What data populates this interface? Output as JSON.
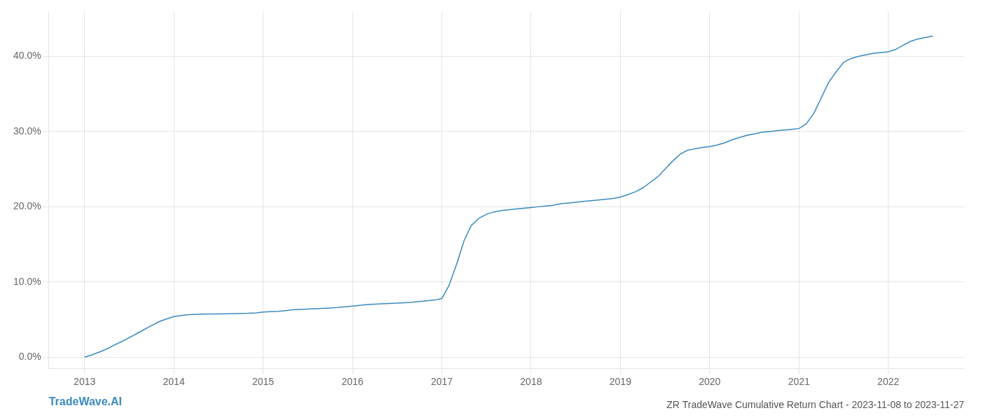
{
  "chart_data": {
    "type": "line",
    "title": "ZR TradeWave Cumulative Return Chart - 2023-11-08 to 2023-11-27",
    "annotations": [
      "TradeWave.AI"
    ],
    "x": [
      2013.0,
      2013.08,
      2013.17,
      2013.25,
      2013.33,
      2013.42,
      2013.5,
      2013.58,
      2013.67,
      2013.75,
      2013.83,
      2013.92,
      2014.0,
      2014.08,
      2014.17,
      2014.25,
      2014.33,
      2014.42,
      2014.5,
      2014.58,
      2014.67,
      2014.75,
      2014.83,
      2014.92,
      2015.0,
      2015.08,
      2015.17,
      2015.25,
      2015.33,
      2015.42,
      2015.5,
      2015.58,
      2015.67,
      2015.75,
      2015.83,
      2015.92,
      2016.0,
      2016.08,
      2016.17,
      2016.25,
      2016.33,
      2016.42,
      2016.5,
      2016.58,
      2016.67,
      2016.75,
      2016.83,
      2016.92,
      2017.0,
      2017.08,
      2017.17,
      2017.25,
      2017.33,
      2017.42,
      2017.5,
      2017.58,
      2017.67,
      2017.75,
      2017.83,
      2017.92,
      2018.0,
      2018.08,
      2018.17,
      2018.25,
      2018.33,
      2018.42,
      2018.5,
      2018.58,
      2018.67,
      2018.75,
      2018.83,
      2018.92,
      2019.0,
      2019.08,
      2019.17,
      2019.25,
      2019.33,
      2019.42,
      2019.5,
      2019.58,
      2019.67,
      2019.75,
      2019.83,
      2019.92,
      2020.0,
      2020.08,
      2020.17,
      2020.25,
      2020.33,
      2020.42,
      2020.5,
      2020.58,
      2020.67,
      2020.75,
      2020.83,
      2020.92,
      2021.0,
      2021.08,
      2021.17,
      2021.25,
      2021.33,
      2021.42,
      2021.5,
      2021.58,
      2021.67,
      2021.75,
      2021.83,
      2021.92,
      2022.0,
      2022.08,
      2022.17,
      2022.25,
      2022.33,
      2022.42,
      2022.5
    ],
    "values": [
      0.0,
      0.3,
      0.7,
      1.1,
      1.6,
      2.1,
      2.6,
      3.1,
      3.7,
      4.2,
      4.7,
      5.1,
      5.4,
      5.55,
      5.65,
      5.7,
      5.72,
      5.74,
      5.76,
      5.78,
      5.8,
      5.82,
      5.84,
      5.9,
      6.0,
      6.05,
      6.1,
      6.2,
      6.3,
      6.35,
      6.4,
      6.45,
      6.5,
      6.55,
      6.6,
      6.7,
      6.8,
      6.9,
      7.0,
      7.05,
      7.1,
      7.15,
      7.2,
      7.25,
      7.3,
      7.4,
      7.5,
      7.6,
      7.8,
      9.5,
      12.5,
      15.5,
      17.5,
      18.5,
      19.0,
      19.3,
      19.5,
      19.6,
      19.7,
      19.8,
      19.9,
      20.0,
      20.1,
      20.2,
      20.4,
      20.5,
      20.6,
      20.7,
      20.8,
      20.9,
      21.0,
      21.1,
      21.3,
      21.6,
      22.0,
      22.5,
      23.2,
      24.0,
      25.0,
      26.0,
      27.0,
      27.5,
      27.7,
      27.9,
      28.0,
      28.2,
      28.5,
      28.9,
      29.2,
      29.5,
      29.7,
      29.9,
      30.0,
      30.1,
      30.2,
      30.3,
      30.4,
      31.0,
      32.5,
      34.5,
      36.5,
      38.0,
      39.2,
      39.7,
      40.0,
      40.2,
      40.4,
      40.5,
      40.6,
      40.9,
      41.5,
      42.0,
      42.3,
      42.5,
      42.7
    ],
    "color": "#3a8abf",
    "xlim": [
      2012.6,
      2022.85
    ],
    "xticks": [
      2013,
      2014,
      2015,
      2016,
      2017,
      2018,
      2019,
      2020,
      2021,
      2022
    ],
    "ylim": [
      -1.5,
      46
    ],
    "yticks": [
      {
        "value": 0.0,
        "label": "0.0%"
      },
      {
        "value": 10.0,
        "label": "10.0%"
      },
      {
        "value": 20.0,
        "label": "20.0%"
      },
      {
        "value": 30.0,
        "label": "30.0%"
      },
      {
        "value": 40.0,
        "label": "40.0%"
      }
    ],
    "grid": true
  }
}
